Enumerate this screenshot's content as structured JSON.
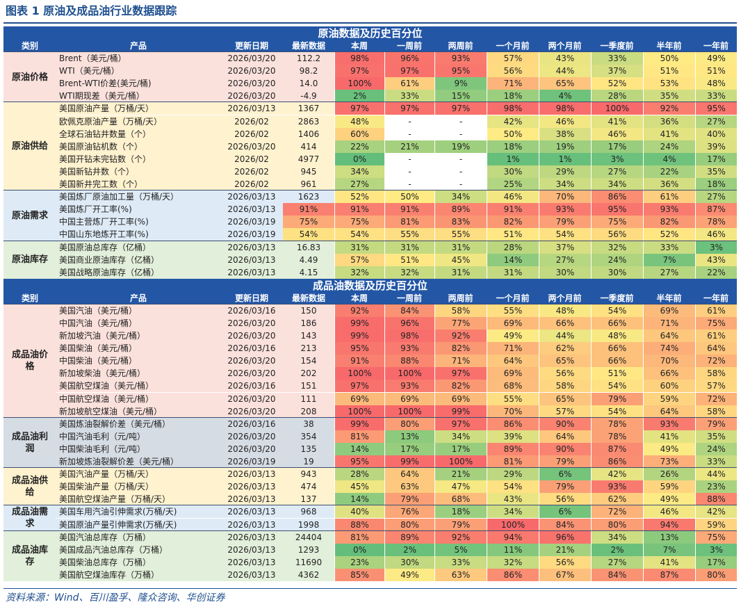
{
  "title": "图表 1 原油及成品油行业数据跟踪",
  "source": "资料来源：Wind、百川盈孚、隆众咨询、华创证券",
  "headers": [
    "类别",
    "产品",
    "更新日期",
    "最新数据",
    "本周",
    "一周前",
    "两周前",
    "一个月前",
    "两个月前",
    "一季度前",
    "半年前",
    "一年前"
  ],
  "colors": {
    "header_bg": "#2356a5",
    "crude_price_bg": "#fbe1dc",
    "crude_supply_bg": "#fff2cf",
    "crude_demand_bg": "#deebf7",
    "crude_stock_bg": "#e2efda",
    "prod_price_bg": "#fbe1dc",
    "prod_margin_bg": "#d6dce4",
    "prod_supply_bg": "#fff2cf",
    "prod_demand_bg": "#deebf7",
    "prod_stock_bg": "#e2efda"
  },
  "sections": [
    {
      "title": "原油数据及历史百分位",
      "groups": [
        {
          "name": "原油价格",
          "bg": "#fbe1dc",
          "rows": [
            {
              "product": "Brent（美元/桶）",
              "date": "2026/03/20",
              "latest": "112.2",
              "pcts": [
                "98%",
                "96%",
                "93%",
                "57%",
                "43%",
                "33%",
                "50%",
                "49%"
              ]
            },
            {
              "product": "WTI（美元/桶）",
              "date": "2026/03/20",
              "latest": "98.2",
              "pcts": [
                "97%",
                "97%",
                "95%",
                "56%",
                "44%",
                "37%",
                "51%",
                "51%"
              ]
            },
            {
              "product": "Brent-WTI价差(美元/桶)",
              "date": "2026/03/20",
              "latest": "14.0",
              "pcts": [
                "100%",
                "61%",
                "9%",
                "71%",
                "65%",
                "52%",
                "53%",
                "48%"
              ]
            },
            {
              "product": "WTI期现差（美元/桶）",
              "date": "2026/03/20",
              "latest": "-4.9",
              "pcts": [
                "2%",
                "33%",
                "15%",
                "18%",
                "4%",
                "28%",
                "35%",
                "33%"
              ]
            }
          ]
        },
        {
          "name": "原油供给",
          "bg": "#fff2cf",
          "rows": [
            {
              "product": "美国原油产量（万桶/天）",
              "date": "2026/03/13",
              "latest": "1367",
              "pcts": [
                "97%",
                "97%",
                "97%",
                "98%",
                "98%",
                "100%",
                "92%",
                "95%"
              ]
            },
            {
              "product": "欧佩克原油产量（万桶/天）",
              "date": "2026/02",
              "latest": "2863",
              "pcts": [
                "48%",
                "-",
                "-",
                "42%",
                "46%",
                "41%",
                "36%",
                "27%"
              ]
            },
            {
              "product": "全球石油钻井数量（个）",
              "date": "2026/02",
              "latest": "1406",
              "pcts": [
                "60%",
                "-",
                "-",
                "50%",
                "38%",
                "46%",
                "41%",
                "40%"
              ]
            },
            {
              "product": "美国原油钻机数（个）",
              "date": "2026/03/20",
              "latest": "414",
              "pcts": [
                "22%",
                "21%",
                "19%",
                "18%",
                "19%",
                "17%",
                "24%",
                "39%"
              ]
            },
            {
              "product": "美国开钻未完钻数（个）",
              "date": "2026/02",
              "latest": "4977",
              "pcts": [
                "0%",
                "-",
                "-",
                "1%",
                "1%",
                "3%",
                "4%",
                "17%"
              ]
            },
            {
              "product": "美国新钻井数（个）",
              "date": "2026/02",
              "latest": "945",
              "pcts": [
                "34%",
                "-",
                "-",
                "30%",
                "29%",
                "27%",
                "22%",
                "35%"
              ]
            },
            {
              "product": "美国新井完工数（个）",
              "date": "2026/02",
              "latest": "961",
              "pcts": [
                "27%",
                "-",
                "-",
                "25%",
                "34%",
                "34%",
                "36%",
                "18%"
              ]
            }
          ]
        },
        {
          "name": "原油需求",
          "bg": "#deebf7",
          "rows": [
            {
              "product": "美国炼厂原油加工量（万桶/天）",
              "date": "2026/03/13",
              "latest": "1623",
              "pcts": [
                "52%",
                "50%",
                "34%",
                "46%",
                "70%",
                "86%",
                "61%",
                "27%"
              ]
            },
            {
              "product": "美国炼厂开工率(%)",
              "date": "2026/03/13",
              "latest": "91%",
              "pcts": [
                "91%",
                "91%",
                "89%",
                "91%",
                "93%",
                "95%",
                "93%",
                "87%"
              ]
            },
            {
              "product": "中国主营炼厂开工率(%)",
              "date": "2026/03/19",
              "latest": "75%",
              "pcts": [
                "75%",
                "81%",
                "83%",
                "82%",
                "79%",
                "75%",
                "82%",
                "78%"
              ]
            },
            {
              "product": "中国山东地炼开工率(%)",
              "date": "2026/03/19",
              "latest": "54%",
              "pcts": [
                "54%",
                "55%",
                "55%",
                "51%",
                "54%",
                "56%",
                "52%",
                "46%"
              ]
            }
          ]
        },
        {
          "name": "原油库存",
          "bg": "#e2efda",
          "rows": [
            {
              "product": "美国原油总库存（亿桶）",
              "date": "2026/03/13",
              "latest": "16.83",
              "pcts": [
                "31%",
                "31%",
                "31%",
                "28%",
                "37%",
                "32%",
                "33%",
                "3%"
              ]
            },
            {
              "product": "美国商业原油库存（亿桶）",
              "date": "2026/03/13",
              "latest": "4.49",
              "pcts": [
                "57%",
                "51%",
                "45%",
                "14%",
                "27%",
                "24%",
                "7%",
                "43%"
              ]
            },
            {
              "product": "美国战略原油库存（亿桶）",
              "date": "2026/03/13",
              "latest": "4.15",
              "pcts": [
                "32%",
                "32%",
                "31%",
                "31%",
                "30%",
                "30%",
                "27%",
                "22%"
              ]
            }
          ]
        }
      ]
    },
    {
      "title": "成品油数据及历史百分位",
      "groups": [
        {
          "name": "成品油价格",
          "bg": "#fbe1dc",
          "rows": [
            {
              "product": "美国汽油（美元/桶）",
              "date": "2026/03/16",
              "latest": "150",
              "pcts": [
                "92%",
                "84%",
                "58%",
                "55%",
                "48%",
                "54%",
                "69%",
                "61%"
              ]
            },
            {
              "product": "中国汽油（美元/桶）",
              "date": "2026/03/20",
              "latest": "186",
              "pcts": [
                "99%",
                "96%",
                "77%",
                "69%",
                "66%",
                "66%",
                "71%",
                "75%"
              ]
            },
            {
              "product": "新加坡汽油（美元/桶）",
              "date": "2026/03/20",
              "latest": "143",
              "pcts": [
                "99%",
                "98%",
                "92%",
                "49%",
                "44%",
                "48%",
                "64%",
                "61%"
              ]
            },
            {
              "product": "美国柴油（美元/桶）",
              "date": "2026/03/16",
              "latest": "213",
              "pcts": [
                "95%",
                "93%",
                "82%",
                "71%",
                "62%",
                "66%",
                "74%",
                "64%"
              ]
            },
            {
              "product": "中国柴油（美元/桶）",
              "date": "2026/03/20",
              "latest": "154",
              "pcts": [
                "91%",
                "88%",
                "71%",
                "64%",
                "65%",
                "66%",
                "70%",
                "72%"
              ]
            },
            {
              "product": "新加坡柴油（美元/桶）",
              "date": "2026/03/20",
              "latest": "202",
              "pcts": [
                "100%",
                "100%",
                "97%",
                "69%",
                "56%",
                "51%",
                "66%",
                "58%"
              ]
            },
            {
              "product": "美国航空煤油（美元/桶）",
              "date": "2026/03/16",
              "latest": "151",
              "pcts": [
                "97%",
                "93%",
                "82%",
                "68%",
                "58%",
                "54%",
                "60%",
                "57%"
              ]
            },
            {
              "product": "中国航空煤油（美元/桶）",
              "date": "2026/03/20",
              "latest": "111",
              "pcts": [
                "69%",
                "69%",
                "69%",
                "55%",
                "65%",
                "79%",
                "59%",
                "72%"
              ]
            },
            {
              "product": "新加坡航空煤油（美元/桶）",
              "date": "2026/03/20",
              "latest": "208",
              "pcts": [
                "100%",
                "100%",
                "99%",
                "70%",
                "57%",
                "54%",
                "64%",
                "58%"
              ]
            }
          ]
        },
        {
          "name": "成品油利润",
          "bg": "#d6dce4",
          "rows": [
            {
              "product": "美国炼油裂解价差（美元/桶）",
              "date": "2026/03/16",
              "latest": "38",
              "pcts": [
                "99%",
                "80%",
                "97%",
                "86%",
                "90%",
                "78%",
                "93%",
                "79%"
              ]
            },
            {
              "product": "中国汽油毛利（元/吨）",
              "date": "2026/03/20",
              "latest": "354",
              "pcts": [
                "81%",
                "13%",
                "34%",
                "39%",
                "64%",
                "78%",
                "41%",
                "35%"
              ]
            },
            {
              "product": "中国柴油毛利（元/吨）",
              "date": "2026/03/20",
              "latest": "135",
              "pcts": [
                "14%",
                "17%",
                "17%",
                "89%",
                "90%",
                "87%",
                "49%",
                "24%"
              ]
            },
            {
              "product": "新加坡炼油裂解价差（美元/桶）",
              "date": "2026/03/19",
              "latest": "19",
              "pcts": [
                "95%",
                "99%",
                "100%",
                "81%",
                "79%",
                "86%",
                "73%",
                "33%"
              ]
            }
          ]
        },
        {
          "name": "成品油供给",
          "bg": "#fff2cf",
          "rows": [
            {
              "product": "美国汽油产量（万桶/天）",
              "date": "2026/03/13",
              "latest": "943",
              "pcts": [
                "28%",
                "64%",
                "21%",
                "29%",
                "6%",
                "42%",
                "26%",
                "44%"
              ]
            },
            {
              "product": "美国柴油产量（万桶/天）",
              "date": "2026/03/13",
              "latest": "474",
              "pcts": [
                "45%",
                "63%",
                "47%",
                "54%",
                "79%",
                "93%",
                "59%",
                "23%"
              ]
            },
            {
              "product": "美国航空煤油产量（万桶/天）",
              "date": "2026/03/13",
              "latest": "137",
              "pcts": [
                "14%",
                "79%",
                "68%",
                "43%",
                "56%",
                "62%",
                "49%",
                "88%"
              ]
            }
          ]
        },
        {
          "name": "成品油需求",
          "bg": "#deebf7",
          "rows": [
            {
              "product": "美国车用汽油引伸需求(万桶/天)",
              "date": "2026/03/13",
              "latest": "968",
              "pcts": [
                "40%",
                "76%",
                "18%",
                "34%",
                "6%",
                "72%",
                "46%",
                "42%"
              ]
            },
            {
              "product": "美国原油产量引伸需求(万桶/天)",
              "date": "2026/03/13",
              "latest": "1998",
              "pcts": [
                "88%",
                "80%",
                "79%",
                "100%",
                "84%",
                "80%",
                "94%",
                "59%"
              ]
            }
          ]
        },
        {
          "name": "成品油库存",
          "bg": "#e2efda",
          "rows": [
            {
              "product": "美国汽油总库存（万桶）",
              "date": "2026/03/13",
              "latest": "24404",
              "pcts": [
                "81%",
                "89%",
                "92%",
                "94%",
                "96%",
                "34%",
                "13%",
                "75%"
              ]
            },
            {
              "product": "美国成品汽油总库存（万桶）",
              "date": "2026/03/13",
              "latest": "1293",
              "pcts": [
                "0%",
                "2%",
                "5%",
                "11%",
                "21%",
                "2%",
                "7%",
                "3%"
              ]
            },
            {
              "product": "美国柴油总库存（万桶）",
              "date": "2026/03/13",
              "latest": "11690",
              "pcts": [
                "23%",
                "30%",
                "33%",
                "32%",
                "56%",
                "27%",
                "41%",
                "17%"
              ]
            },
            {
              "product": "美国航空煤油库存（万桶）",
              "date": "2026/03/13",
              "latest": "4362",
              "pcts": [
                "85%",
                "49%",
                "63%",
                "86%",
                "67%",
                "84%",
                "87%",
                "80%"
              ]
            }
          ]
        }
      ]
    }
  ]
}
